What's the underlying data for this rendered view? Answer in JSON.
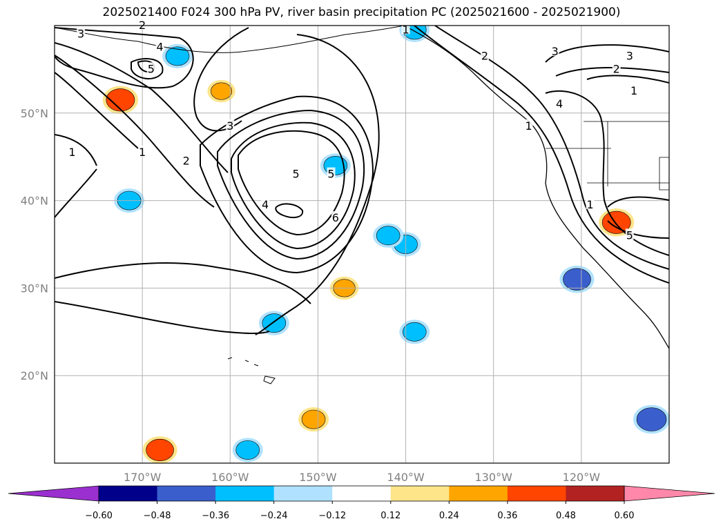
{
  "chart_data": {
    "type": "heatmap",
    "title": "2025021400 F024 300 hPa PV, river basin precipitation PC (2025021600 - 2025021900)",
    "x_ticks": [
      "170°W",
      "160°W",
      "150°W",
      "140°W",
      "130°W",
      "120°W"
    ],
    "x_tick_values": [
      -170,
      -160,
      -150,
      -140,
      -130,
      -120
    ],
    "y_ticks": [
      "50°N",
      "40°N",
      "30°N",
      "20°N"
    ],
    "y_tick_values": [
      50,
      40,
      30,
      20
    ],
    "xlim": [
      -180,
      -110
    ],
    "ylim": [
      10,
      60
    ],
    "grid": true,
    "colorbar": {
      "orientation": "horizontal",
      "extend": "both",
      "levels": [
        -0.6,
        -0.48,
        -0.36,
        -0.24,
        -0.12,
        0.12,
        0.24,
        0.36,
        0.48,
        0.6
      ],
      "tick_labels": [
        "−0.60",
        "−0.48",
        "−0.36",
        "−0.24",
        "−0.12",
        "0.12",
        "0.24",
        "0.36",
        "0.48",
        "0.60"
      ],
      "colors": [
        "#9b30d0",
        "#00008b",
        "#3a5fcd",
        "#00bfff",
        "#b0e2ff",
        "#ffffff",
        "#ffe58a",
        "#ffa500",
        "#ff4500",
        "#b22222",
        "#ff88aa"
      ]
    },
    "contour_levels": [
      "1",
      "2",
      "3",
      "4",
      "5",
      "6"
    ],
    "contour_labels": [
      {
        "text": "3",
        "lon": -177,
        "lat": 59
      },
      {
        "text": "2",
        "lon": -170,
        "lat": 60
      },
      {
        "text": "4",
        "lon": -168,
        "lat": 57.5
      },
      {
        "text": "5",
        "lon": -169,
        "lat": 55
      },
      {
        "text": "1",
        "lon": -178,
        "lat": 45.5
      },
      {
        "text": "1",
        "lon": -170,
        "lat": 45.5
      },
      {
        "text": "2",
        "lon": -165,
        "lat": 44.5
      },
      {
        "text": "3",
        "lon": -160,
        "lat": 48.5
      },
      {
        "text": "4",
        "lon": -156,
        "lat": 39.5
      },
      {
        "text": "5",
        "lon": -152.5,
        "lat": 43
      },
      {
        "text": "5",
        "lon": -148.5,
        "lat": 43
      },
      {
        "text": "6",
        "lon": -148,
        "lat": 38
      },
      {
        "text": "1",
        "lon": -140,
        "lat": 59.5
      },
      {
        "text": "2",
        "lon": -131,
        "lat": 56.5
      },
      {
        "text": "3",
        "lon": -123,
        "lat": 57
      },
      {
        "text": "2",
        "lon": -116,
        "lat": 55
      },
      {
        "text": "3",
        "lon": -114.5,
        "lat": 56.5
      },
      {
        "text": "1",
        "lon": -114,
        "lat": 52.5
      },
      {
        "text": "4",
        "lon": -122.5,
        "lat": 51
      },
      {
        "text": "1",
        "lon": -126,
        "lat": 48.5
      },
      {
        "text": "1",
        "lon": -119,
        "lat": 39.5
      },
      {
        "text": "5",
        "lon": -114.5,
        "lat": 36
      }
    ],
    "precip_regions": [
      {
        "lon": -172.5,
        "lat": 51.5,
        "value": 0.42
      },
      {
        "lon": -161,
        "lat": 52.5,
        "value": 0.24
      },
      {
        "lon": -168,
        "lat": 11.5,
        "value": 0.4
      },
      {
        "lon": -150.5,
        "lat": 15,
        "value": 0.3
      },
      {
        "lon": -147,
        "lat": 30,
        "value": 0.26
      },
      {
        "lon": -116,
        "lat": 37.5,
        "value": 0.42
      },
      {
        "lon": -166,
        "lat": 56.5,
        "value": -0.3
      },
      {
        "lon": -148,
        "lat": 44,
        "value": -0.3
      },
      {
        "lon": -171.5,
        "lat": 40,
        "value": -0.3
      },
      {
        "lon": -140,
        "lat": 35,
        "value": -0.3
      },
      {
        "lon": -142,
        "lat": 36,
        "value": -0.3
      },
      {
        "lon": -139,
        "lat": 25,
        "value": -0.3
      },
      {
        "lon": -155,
        "lat": 26,
        "value": -0.3
      },
      {
        "lon": -158,
        "lat": 11.5,
        "value": -0.3
      },
      {
        "lon": -120.5,
        "lat": 31,
        "value": -0.4
      },
      {
        "lon": -112,
        "lat": 15,
        "value": -0.45
      },
      {
        "lon": -139,
        "lat": 59.5,
        "value": -0.3
      }
    ]
  }
}
